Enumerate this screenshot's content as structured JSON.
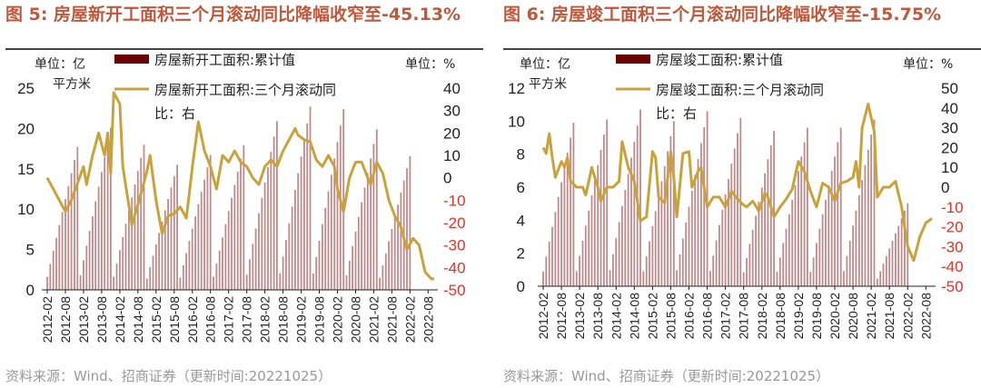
{
  "charts": [
    {
      "title": "图 5:  房屋新开工面积三个月滚动同比降幅收窄至-45.13%",
      "source": "资料来源：Wind、招商证券（更新时间:20221025）",
      "left_unit_line1": "单位：亿",
      "left_unit_line2": "平方米",
      "right_unit": "单位：%",
      "legend_bar": "房屋新开工面积:累计值",
      "legend_line_1": "房屋新开工面积:三个月滚动同",
      "legend_line_2": "比：右",
      "colors": {
        "bar": "#C08A8A",
        "legend_bar": "#6B0000",
        "line": "#C9A33A",
        "negative_tick": "#E8302B",
        "title": "#C0583B"
      },
      "chart_data": {
        "type": "bar+line",
        "title": "",
        "x_start": "2012-02",
        "months": 129,
        "x_tick_labels": [
          "2012-02",
          "2012-08",
          "2013-02",
          "2013-08",
          "2014-02",
          "2014-08",
          "2015-02",
          "2015-08",
          "2016-02",
          "2016-08",
          "2017-02",
          "2017-08",
          "2018-02",
          "2018-08",
          "2019-02",
          "2019-08",
          "2020-02",
          "2020-08",
          "2021-02",
          "2021-08",
          "2022-02",
          "2022-08"
        ],
        "y_left": {
          "min": 0,
          "max": 25,
          "ticks": [
            0,
            5,
            10,
            15,
            20,
            25
          ]
        },
        "y_right": {
          "min": -50,
          "max": 40,
          "ticks": [
            40,
            30,
            20,
            10,
            0,
            -10,
            -20,
            -30,
            -40,
            -50
          ]
        },
        "series": [
          {
            "name": "房屋新开工面积:累计值",
            "axis": "left",
            "kind": "bar",
            "yearly_totals": [
              17.7,
              20.1,
              18.0,
              15.5,
              16.7,
              17.9,
              20.9,
              22.7,
              22.4,
              19.9,
              12.06
            ],
            "last_year_months": 8
          },
          {
            "name": "房屋新开工面积:三个月滚动同比",
            "axis": "right",
            "kind": "line",
            "keyframes": [
              [
                0,
                0
              ],
              [
                2,
                -5
              ],
              [
                6,
                -15
              ],
              [
                8,
                -10
              ],
              [
                12,
                5
              ],
              [
                13,
                -3
              ],
              [
                15,
                10
              ],
              [
                17,
                20
              ],
              [
                19,
                10
              ],
              [
                20,
                20
              ],
              [
                21,
                2
              ],
              [
                22,
                38
              ],
              [
                24,
                33
              ],
              [
                25,
                5
              ],
              [
                28,
                -21
              ],
              [
                30,
                -12
              ],
              [
                33,
                3
              ],
              [
                34,
                10
              ],
              [
                36,
                -10
              ],
              [
                38,
                -25
              ],
              [
                40,
                -17
              ],
              [
                42,
                -16
              ],
              [
                44,
                -13
              ],
              [
                46,
                -18
              ],
              [
                47,
                -7
              ],
              [
                48,
                5
              ],
              [
                50,
                25
              ],
              [
                52,
                12
              ],
              [
                54,
                5
              ],
              [
                56,
                -5
              ],
              [
                58,
                10
              ],
              [
                60,
                7
              ],
              [
                62,
                12
              ],
              [
                64,
                7
              ],
              [
                66,
                5
              ],
              [
                68,
                0
              ],
              [
                70,
                -3
              ],
              [
                72,
                5
              ],
              [
                74,
                8
              ],
              [
                76,
                5
              ],
              [
                78,
                12
              ],
              [
                80,
                17
              ],
              [
                82,
                22
              ],
              [
                83,
                19
              ],
              [
                85,
                17
              ],
              [
                87,
                16
              ],
              [
                89,
                8
              ],
              [
                91,
                5
              ],
              [
                93,
                10
              ],
              [
                95,
                5
              ],
              [
                96,
                -5
              ],
              [
                98,
                -15
              ],
              [
                100,
                0
              ],
              [
                102,
                7
              ],
              [
                104,
                7
              ],
              [
                106,
                0
              ],
              [
                107,
                -3
              ],
              [
                109,
                7
              ],
              [
                111,
                2
              ],
              [
                113,
                -10
              ],
              [
                115,
                -17
              ],
              [
                117,
                -22
              ],
              [
                119,
                -32
              ],
              [
                121,
                -27
              ],
              [
                123,
                -30
              ],
              [
                125,
                -42
              ],
              [
                127,
                -45
              ],
              [
                128,
                -45.13
              ]
            ]
          }
        ]
      }
    },
    {
      "title": "图 6:  房屋竣工面积三个月滚动同比降幅收窄至-15.75%",
      "source": "资料来源：Wind、招商证券（更新时间:20221025）",
      "left_unit_line1": "单位：亿",
      "left_unit_line2": "平方米",
      "right_unit": "单位：%",
      "legend_bar": "房屋竣工面积:累计值",
      "legend_line_1": "房屋竣工面积:三个月滚动同",
      "legend_line_2": "比：右",
      "colors": {
        "bar": "#C08A8A",
        "legend_bar": "#6B0000",
        "line": "#C9A33A",
        "negative_tick": "#E8302B",
        "title": "#C0583B"
      },
      "chart_data": {
        "type": "bar+line",
        "title": "",
        "x_start": "2012-02",
        "months": 129,
        "x_tick_labels": [
          "2012-02",
          "2012-08",
          "2013-02",
          "2013-08",
          "2014-02",
          "2014-08",
          "2015-02",
          "2015-08",
          "2016-02",
          "2016-08",
          "2017-02",
          "2017-08",
          "2018-02",
          "2018-08",
          "2019-02",
          "2019-08",
          "2020-02",
          "2020-08",
          "2021-02",
          "2021-08",
          "2022-02",
          "2022-08"
        ],
        "y_left": {
          "min": 0,
          "max": 12,
          "ticks": [
            0,
            2,
            4,
            6,
            8,
            10,
            12
          ]
        },
        "y_right": {
          "min": -50,
          "max": 50,
          "ticks": [
            50,
            40,
            30,
            20,
            10,
            0,
            -10,
            -20,
            -30,
            -40,
            -50
          ]
        },
        "series": [
          {
            "name": "房屋竣工面积:累计值",
            "axis": "left",
            "kind": "bar",
            "yearly_totals": [
              9.9,
              10.1,
              10.7,
              10.0,
              10.6,
              10.2,
              9.4,
              9.6,
              9.6,
              10.1,
              3.66
            ],
            "last_year_months": 8
          },
          {
            "name": "房屋竣工面积:三个月滚动同比",
            "axis": "right",
            "kind": "line",
            "keyframes": [
              [
                0,
                20
              ],
              [
                1,
                17
              ],
              [
                2,
                27
              ],
              [
                3,
                15
              ],
              [
                4,
                5
              ],
              [
                6,
                13
              ],
              [
                7,
                10
              ],
              [
                8,
                15
              ],
              [
                9,
                3
              ],
              [
                11,
                0
              ],
              [
                13,
                0
              ],
              [
                14,
                -4
              ],
              [
                16,
                10
              ],
              [
                18,
                0
              ],
              [
                19,
                -7
              ],
              [
                21,
                0
              ],
              [
                23,
                0
              ],
              [
                25,
                3
              ],
              [
                26,
                23
              ],
              [
                28,
                10
              ],
              [
                30,
                3
              ],
              [
                32,
                -17
              ],
              [
                34,
                -15
              ],
              [
                36,
                18
              ],
              [
                37,
                15
              ],
              [
                38,
                -5
              ],
              [
                40,
                -8
              ],
              [
                42,
                18
              ],
              [
                43,
                5
              ],
              [
                44,
                -15
              ],
              [
                46,
                17
              ],
              [
                48,
                18
              ],
              [
                49,
                0
              ],
              [
                51,
                8
              ],
              [
                52,
                10
              ],
              [
                54,
                -10
              ],
              [
                56,
                -5
              ],
              [
                58,
                -5
              ],
              [
                60,
                -10
              ],
              [
                62,
                -2
              ],
              [
                64,
                -6
              ],
              [
                66,
                -9
              ],
              [
                67,
                -10
              ],
              [
                69,
                -7
              ],
              [
                71,
                -12
              ],
              [
                73,
                -3
              ],
              [
                74,
                -5
              ],
              [
                76,
                -15
              ],
              [
                78,
                -10
              ],
              [
                80,
                -6
              ],
              [
                82,
                -1
              ],
              [
                84,
                13
              ],
              [
                86,
                8
              ],
              [
                88,
                -2
              ],
              [
                90,
                -10
              ],
              [
                92,
                2
              ],
              [
                94,
                0
              ],
              [
                96,
                -7
              ],
              [
                98,
                2
              ],
              [
                100,
                3
              ],
              [
                102,
                5
              ],
              [
                103,
                13
              ],
              [
                104,
                0
              ],
              [
                105,
                30
              ],
              [
                107,
                42
              ],
              [
                109,
                28
              ],
              [
                110,
                -5
              ],
              [
                112,
                0
              ],
              [
                114,
                0
              ],
              [
                116,
                3
              ],
              [
                118,
                -10
              ],
              [
                120,
                -30
              ],
              [
                122,
                -37
              ],
              [
                124,
                -25
              ],
              [
                126,
                -18
              ],
              [
                128,
                -15.75
              ]
            ]
          }
        ]
      }
    }
  ]
}
